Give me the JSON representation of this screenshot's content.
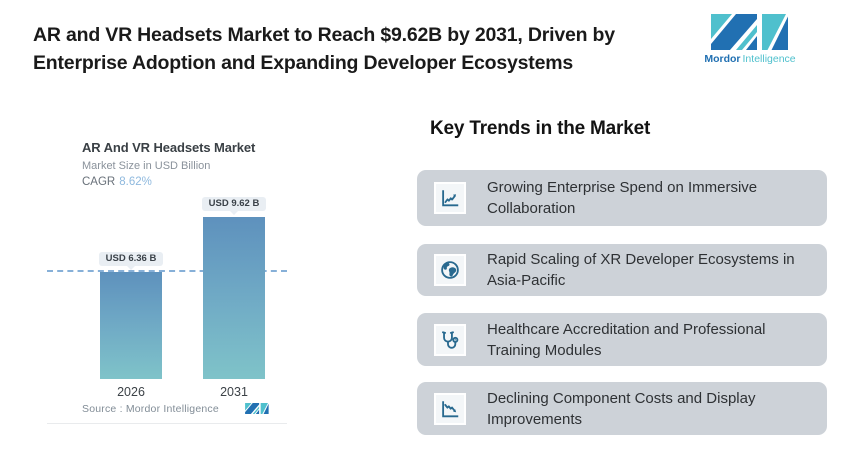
{
  "header": {
    "title_line1": "AR and VR Headsets Market to Reach $9.62B by 2031, Driven by",
    "title_line2": "Enterprise Adoption and Expanding Developer Ecosystems",
    "logo": {
      "brand_bold": "Mordor",
      "brand_light": "Intelligence"
    }
  },
  "chart_card": {
    "title": "AR And VR Headsets Market",
    "subtitle": "Market Size in USD Billion",
    "cagr_label": "CAGR",
    "cagr_value": "8.62%",
    "source": "Source :  Mordor Intelligence"
  },
  "chart_data": {
    "type": "bar",
    "title": "AR And VR Headsets Market",
    "subtitle": "Market Size in USD Billion",
    "cagr": "8.62%",
    "unit": "USD Billion",
    "categories": [
      "2026",
      "2031"
    ],
    "values": [
      6.36,
      9.62
    ],
    "value_labels": [
      "USD 6.36 B",
      "USD 9.62 B"
    ],
    "reference_line_value": 6.36,
    "source": "Source :  Mordor Intelligence",
    "legend": "none",
    "grid": "off",
    "bar_gradient": [
      "#5E91BD",
      "#7FC3C9"
    ],
    "reference_line_color": "#87B0D8"
  },
  "trends": {
    "heading": "Key Trends in the Market",
    "items": [
      {
        "icon": "line-chart-up-icon",
        "text": "Growing Enterprise Spend on Immersive Collaboration"
      },
      {
        "icon": "globe-icon",
        "text": "Rapid Scaling of XR Developer Ecosystems in Asia-Pacific"
      },
      {
        "icon": "stethoscope-icon",
        "text": "Healthcare Accreditation and Professional Training Modules"
      },
      {
        "icon": "line-chart-down-icon",
        "text": "Declining Component Costs and Display Improvements"
      }
    ]
  },
  "colors": {
    "chip_background": "#CDD2D8",
    "icon_blue": "#28698F",
    "logo_blue": "#2170B2",
    "logo_teal": "#4FC0CD",
    "cagr_value": "#8FB9DE",
    "label_chip_bg": "#E9EEF3"
  }
}
